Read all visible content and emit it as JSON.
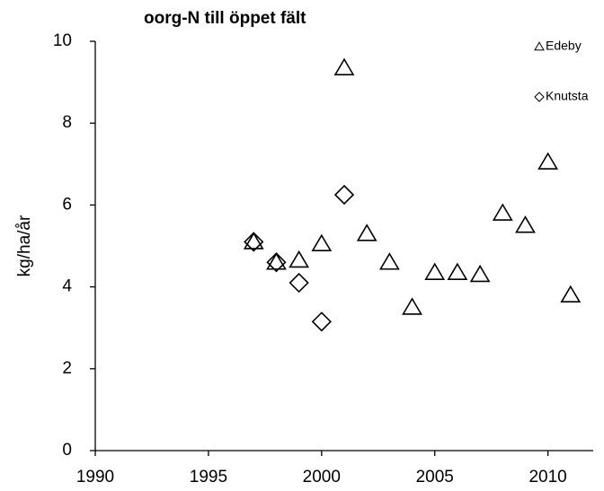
{
  "chart_data": {
    "type": "scatter",
    "title": "oorg-N till öppet fält",
    "y_label": "kg/ha/år",
    "xlim": [
      1990,
      2012
    ],
    "xticks": [
      1990,
      1995,
      2000,
      2005,
      2010
    ],
    "ylim": [
      0,
      10
    ],
    "yticks": [
      0,
      2,
      4,
      6,
      8,
      10
    ],
    "grid": false,
    "legend": "top-right",
    "series": [
      {
        "name": "Edeby",
        "marker": "triangle",
        "color": "#000000",
        "x": [
          1997,
          1998,
          1999,
          2000,
          2001,
          2002,
          2003,
          2004,
          2005,
          2006,
          2007,
          2008,
          2009,
          2010,
          2011
        ],
        "values": [
          5.1,
          4.6,
          4.65,
          5.05,
          9.35,
          5.3,
          4.6,
          3.5,
          4.35,
          4.35,
          4.3,
          5.8,
          5.5,
          7.05,
          3.8
        ]
      },
      {
        "name": "Knutsta",
        "marker": "diamond",
        "color": "#000000",
        "x": [
          1997,
          1998,
          1999,
          2000,
          2001
        ],
        "values": [
          5.1,
          4.6,
          4.1,
          3.15,
          6.25
        ]
      }
    ]
  }
}
